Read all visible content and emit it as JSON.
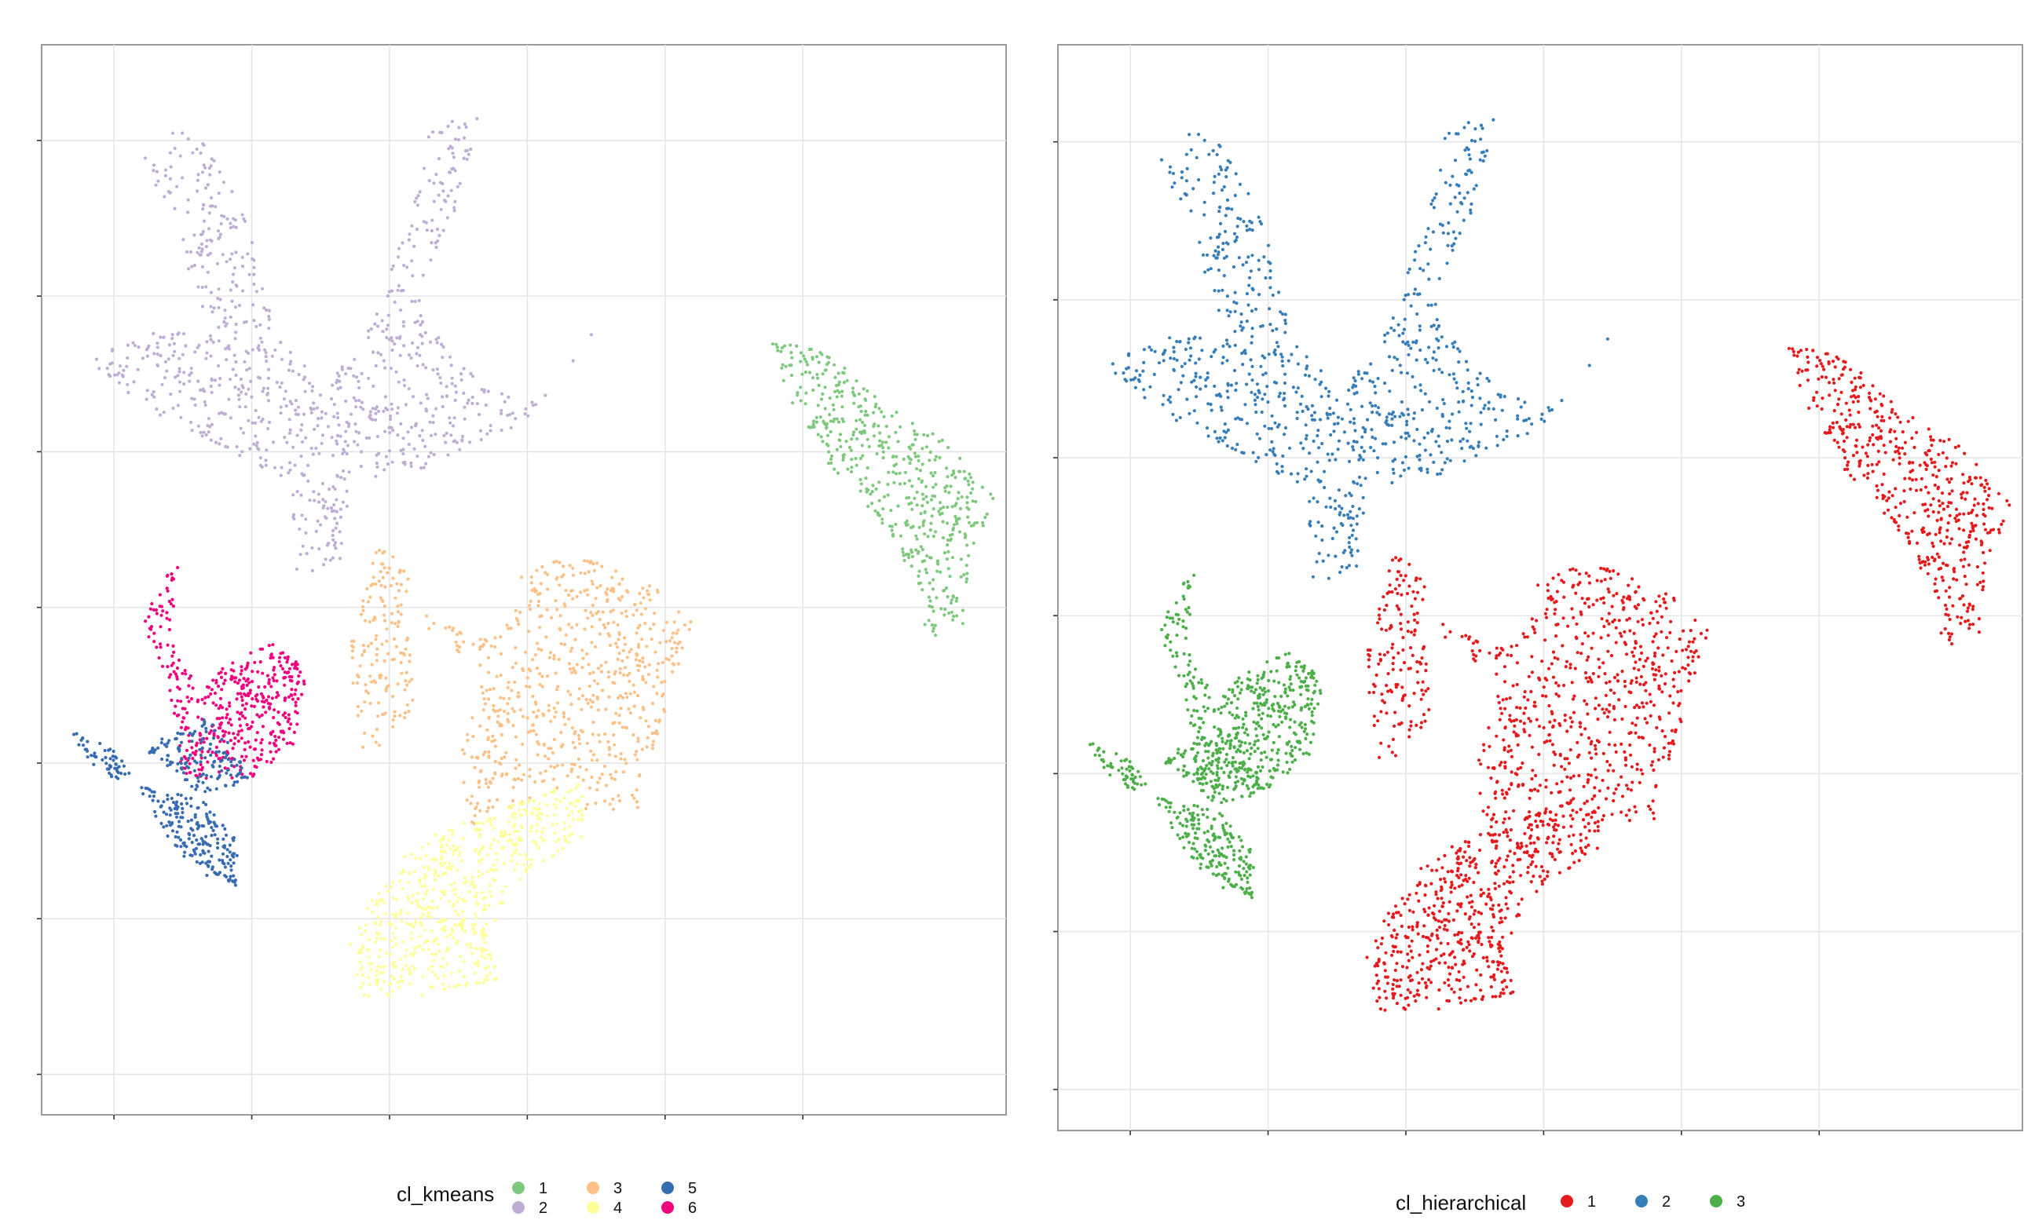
{
  "chart_data": [
    {
      "type": "scatter",
      "title": "",
      "xlabel": "",
      "ylabel": "",
      "grid": true,
      "legend_placement": "bottom",
      "legend_title": "cl_kmeans",
      "legend_entries": [
        "1",
        "2",
        "3",
        "4",
        "5",
        "6"
      ],
      "colors": {
        "1": "#7fc97f",
        "2": "#beaed4",
        "3": "#fdc086",
        "4": "#ffff99",
        "5": "#386cb0",
        "6": "#f0027f"
      },
      "x_gridlines": [
        -40,
        -20,
        0,
        20,
        40,
        60
      ],
      "y_gridlines": [
        50,
        30,
        10,
        -10,
        -30,
        -50,
        -70
      ],
      "xlim": [
        -50.5,
        89.5
      ],
      "ylim": [
        -75.2,
        62.3
      ],
      "clusters": [
        {
          "label": "2",
          "region": [
            [
              -32,
              52
            ],
            [
              -26,
              50
            ],
            [
              -20,
              38
            ],
            [
              -16,
              26
            ],
            [
              -10,
              18
            ],
            [
              -4,
              24
            ],
            [
              2,
              38
            ],
            [
              6,
              52
            ],
            [
              14,
              54
            ],
            [
              10,
              42
            ],
            [
              4,
              30
            ],
            [
              12,
              20
            ],
            [
              20,
              16
            ],
            [
              28,
              22
            ],
            [
              34,
              34
            ],
            [
              38,
              42
            ],
            [
              30,
              26
            ],
            [
              20,
              14
            ],
            [
              6,
              8
            ],
            [
              -6,
              6
            ],
            [
              -6,
              -4
            ],
            [
              -14,
              -6
            ],
            [
              -14,
              6
            ],
            [
              -28,
              12
            ],
            [
              -36,
              16
            ],
            [
              -44,
              22
            ],
            [
              -32,
              26
            ],
            [
              -26,
              24
            ],
            [
              -30,
              36
            ],
            [
              -36,
              48
            ]
          ],
          "n": 900
        },
        {
          "label": "1",
          "region": [
            [
              54,
              24
            ],
            [
              62,
              24
            ],
            [
              72,
              16
            ],
            [
              80,
              12
            ],
            [
              88,
              4
            ],
            [
              84,
              -4
            ],
            [
              84,
              -12
            ],
            [
              78,
              -14
            ],
            [
              76,
              -6
            ],
            [
              72,
              0
            ],
            [
              64,
              8
            ],
            [
              56,
              20
            ]
          ],
          "n": 500
        },
        {
          "label": "3",
          "region": [
            [
              -2,
              -2
            ],
            [
              -6,
              -16
            ],
            [
              -4,
              -28
            ],
            [
              0,
              -28
            ],
            [
              4,
              -22
            ],
            [
              2,
              -10
            ],
            [
              16,
              -14
            ],
            [
              20,
              -4
            ],
            [
              30,
              -4
            ],
            [
              40,
              -8
            ],
            [
              44,
              -12
            ],
            [
              40,
              -24
            ],
            [
              36,
              -36
            ],
            [
              28,
              -36
            ],
            [
              28,
              -32
            ],
            [
              12,
              -38
            ],
            [
              10,
              -30
            ],
            [
              14,
              -18
            ],
            [
              6,
              -14
            ],
            [
              2,
              -4
            ]
          ],
          "n": 800
        },
        {
          "label": "4",
          "region": [
            [
              10,
              -38
            ],
            [
              28,
              -32
            ],
            [
              28,
              -40
            ],
            [
              20,
              -44
            ],
            [
              14,
              -52
            ],
            [
              16,
              -58
            ],
            [
              4,
              -60
            ],
            [
              -4,
              -60
            ],
            [
              -6,
              -52
            ],
            [
              0,
              -44
            ],
            [
              4,
              -40
            ]
          ],
          "n": 600
        },
        {
          "label": "6",
          "region": [
            [
              -30,
              -2
            ],
            [
              -32,
              -14
            ],
            [
              -28,
              -20
            ],
            [
              -18,
              -14
            ],
            [
              -12,
              -18
            ],
            [
              -14,
              -28
            ],
            [
              -20,
              -32
            ],
            [
              -30,
              -32
            ],
            [
              -32,
              -20
            ],
            [
              -36,
              -12
            ]
          ],
          "n": 450
        },
        {
          "label": "5",
          "region": [
            [
              -46,
              -26
            ],
            [
              -40,
              -28
            ],
            [
              -32,
              -40
            ],
            [
              -28,
              -44
            ],
            [
              -22,
              -46
            ],
            [
              -22,
              -40
            ],
            [
              -30,
              -32
            ],
            [
              -36,
              -28
            ],
            [
              -26,
              -24
            ],
            [
              -20,
              -32
            ],
            [
              -26,
              -34
            ],
            [
              -32,
              -34
            ],
            [
              -40,
              -32
            ],
            [
              -44,
              -30
            ]
          ],
          "n": 380
        }
      ]
    },
    {
      "type": "scatter",
      "title": "",
      "xlabel": "",
      "ylabel": "",
      "grid": true,
      "legend_placement": "bottom",
      "legend_title": "cl_hierarchical",
      "legend_entries": [
        "1",
        "2",
        "3"
      ],
      "colors": {
        "1": "#e41a1c",
        "2": "#377eb8",
        "3": "#4daf4a"
      },
      "x_gridlines": [
        -40,
        -20,
        0,
        20,
        40,
        60
      ],
      "y_gridlines": [
        50,
        30,
        10,
        -10,
        -30,
        -50,
        -70
      ],
      "xlim": [
        -50.5,
        89.5
      ],
      "ylim": [
        -75.2,
        62.3
      ],
      "clusters": [
        {
          "label": "2",
          "region": [
            [
              -32,
              52
            ],
            [
              -26,
              50
            ],
            [
              -20,
              38
            ],
            [
              -16,
              26
            ],
            [
              -10,
              18
            ],
            [
              -4,
              24
            ],
            [
              2,
              38
            ],
            [
              6,
              52
            ],
            [
              14,
              54
            ],
            [
              10,
              42
            ],
            [
              4,
              30
            ],
            [
              12,
              20
            ],
            [
              20,
              16
            ],
            [
              28,
              22
            ],
            [
              34,
              34
            ],
            [
              38,
              42
            ],
            [
              30,
              26
            ],
            [
              20,
              14
            ],
            [
              6,
              8
            ],
            [
              -6,
              6
            ],
            [
              -6,
              -4
            ],
            [
              -14,
              -6
            ],
            [
              -14,
              6
            ],
            [
              -28,
              12
            ],
            [
              -36,
              16
            ],
            [
              -44,
              22
            ],
            [
              -32,
              26
            ],
            [
              -26,
              24
            ],
            [
              -30,
              36
            ],
            [
              -36,
              48
            ]
          ],
          "n": 900
        },
        {
          "label": "1",
          "region": [
            [
              54,
              24
            ],
            [
              62,
              24
            ],
            [
              72,
              16
            ],
            [
              80,
              12
            ],
            [
              88,
              4
            ],
            [
              84,
              -4
            ],
            [
              84,
              -12
            ],
            [
              78,
              -14
            ],
            [
              76,
              -6
            ],
            [
              72,
              0
            ],
            [
              64,
              8
            ],
            [
              56,
              20
            ]
          ],
          "n": 500
        },
        {
          "label": "1",
          "region": [
            [
              -2,
              -2
            ],
            [
              -6,
              -16
            ],
            [
              -4,
              -28
            ],
            [
              0,
              -28
            ],
            [
              4,
              -22
            ],
            [
              2,
              -10
            ],
            [
              16,
              -14
            ],
            [
              20,
              -4
            ],
            [
              30,
              -4
            ],
            [
              40,
              -8
            ],
            [
              44,
              -12
            ],
            [
              40,
              -24
            ],
            [
              36,
              -36
            ],
            [
              28,
              -36
            ],
            [
              28,
              -32
            ],
            [
              12,
              -38
            ],
            [
              10,
              -30
            ],
            [
              14,
              -18
            ],
            [
              6,
              -14
            ],
            [
              2,
              -4
            ]
          ],
          "n": 800
        },
        {
          "label": "1",
          "region": [
            [
              10,
              -38
            ],
            [
              28,
              -32
            ],
            [
              28,
              -40
            ],
            [
              20,
              -44
            ],
            [
              14,
              -52
            ],
            [
              16,
              -58
            ],
            [
              4,
              -60
            ],
            [
              -4,
              -60
            ],
            [
              -6,
              -52
            ],
            [
              0,
              -44
            ],
            [
              4,
              -40
            ]
          ],
          "n": 600
        },
        {
          "label": "3",
          "region": [
            [
              -30,
              -2
            ],
            [
              -32,
              -14
            ],
            [
              -28,
              -20
            ],
            [
              -18,
              -14
            ],
            [
              -12,
              -18
            ],
            [
              -14,
              -28
            ],
            [
              -20,
              -32
            ],
            [
              -30,
              -32
            ],
            [
              -32,
              -20
            ],
            [
              -36,
              -12
            ]
          ],
          "n": 450
        },
        {
          "label": "3",
          "region": [
            [
              -46,
              -26
            ],
            [
              -40,
              -28
            ],
            [
              -32,
              -40
            ],
            [
              -28,
              -44
            ],
            [
              -22,
              -46
            ],
            [
              -22,
              -40
            ],
            [
              -30,
              -32
            ],
            [
              -36,
              -28
            ],
            [
              -26,
              -24
            ],
            [
              -20,
              -32
            ],
            [
              -26,
              -34
            ],
            [
              -32,
              -34
            ],
            [
              -40,
              -32
            ],
            [
              -44,
              -30
            ]
          ],
          "n": 380
        }
      ]
    }
  ]
}
